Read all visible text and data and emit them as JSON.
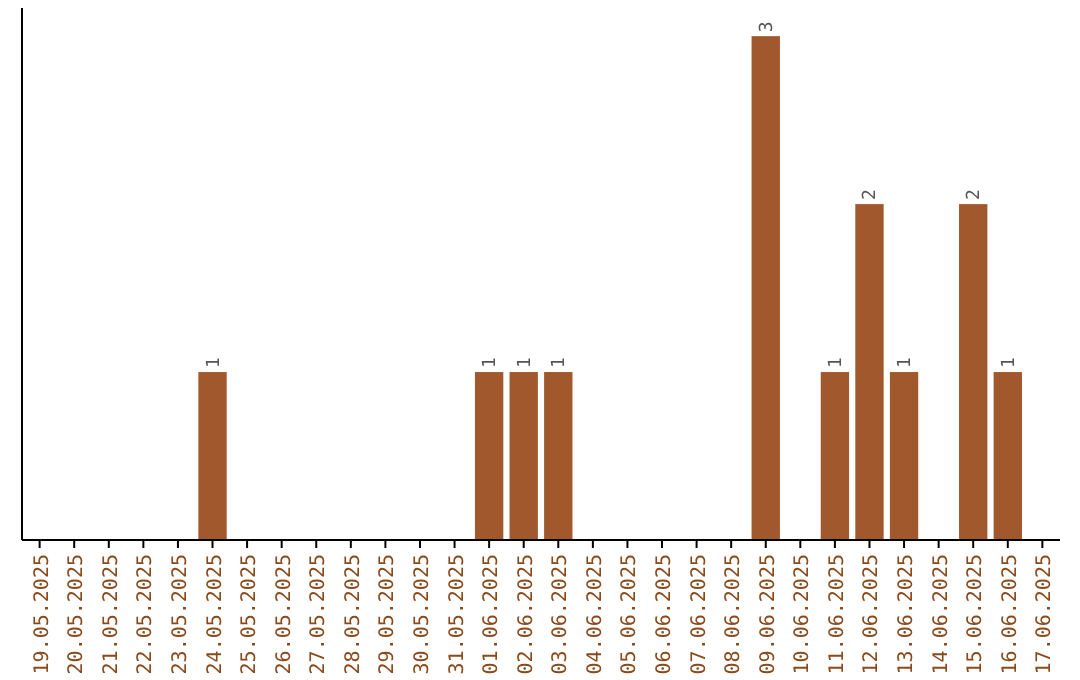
{
  "chart_data": {
    "type": "bar",
    "categories": [
      "19.05.2025",
      "20.05.2025",
      "21.05.2025",
      "22.05.2025",
      "23.05.2025",
      "24.05.2025",
      "25.05.2025",
      "26.05.2025",
      "27.05.2025",
      "28.05.2025",
      "29.05.2025",
      "30.05.2025",
      "31.05.2025",
      "01.06.2025",
      "02.06.2025",
      "03.06.2025",
      "04.06.2025",
      "05.06.2025",
      "06.06.2025",
      "07.06.2025",
      "08.06.2025",
      "09.06.2025",
      "10.06.2025",
      "11.06.2025",
      "12.06.2025",
      "13.06.2025",
      "14.06.2025",
      "15.06.2025",
      "16.06.2025",
      "17.06.2025"
    ],
    "values": [
      0,
      0,
      0,
      0,
      0,
      1,
      0,
      0,
      0,
      0,
      0,
      0,
      0,
      1,
      1,
      1,
      0,
      0,
      0,
      0,
      0,
      3,
      0,
      1,
      2,
      1,
      0,
      2,
      1,
      0
    ],
    "value_labels": [
      null,
      null,
      null,
      null,
      null,
      "1",
      null,
      null,
      null,
      null,
      null,
      null,
      null,
      "1",
      "1",
      "1",
      null,
      null,
      null,
      null,
      null,
      "3",
      null,
      "1",
      "2",
      "1",
      null,
      "2",
      "1",
      null
    ],
    "color": "#a0582c"
  }
}
